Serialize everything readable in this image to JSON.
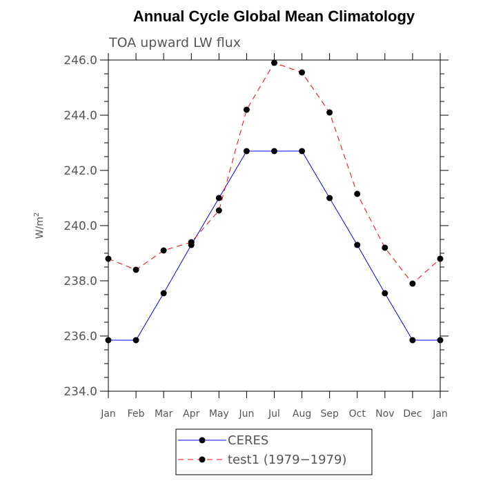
{
  "chart_data": {
    "type": "line",
    "title": "Annual Cycle Global Mean Climatology",
    "subtitle": "TOA upward LW flux",
    "ylabel": "W/m",
    "ylabel_superscript": "2",
    "ylim": [
      234.0,
      246.0
    ],
    "yticks": [
      "234.0",
      "236.0",
      "238.0",
      "240.0",
      "242.0",
      "244.0",
      "246.0"
    ],
    "categories": [
      "Jan",
      "Feb",
      "Mar",
      "Apr",
      "May",
      "Jun",
      "Jul",
      "Aug",
      "Sep",
      "Oct",
      "Nov",
      "Dec",
      "Jan"
    ],
    "series": [
      {
        "name": "CERES",
        "color": "#0000ff",
        "dash": "solid",
        "values": [
          235.85,
          235.85,
          237.55,
          239.3,
          241.0,
          242.7,
          242.7,
          242.7,
          241.0,
          239.3,
          237.55,
          235.85,
          235.85
        ]
      },
      {
        "name": "test1 (1979−1979)",
        "color": "#ff0000",
        "dash": "dashed",
        "values": [
          238.8,
          238.4,
          239.1,
          239.4,
          240.55,
          244.2,
          245.9,
          245.55,
          244.1,
          241.15,
          239.2,
          237.9,
          238.8
        ]
      }
    ],
    "grid": false,
    "legend_position": "bottom"
  }
}
